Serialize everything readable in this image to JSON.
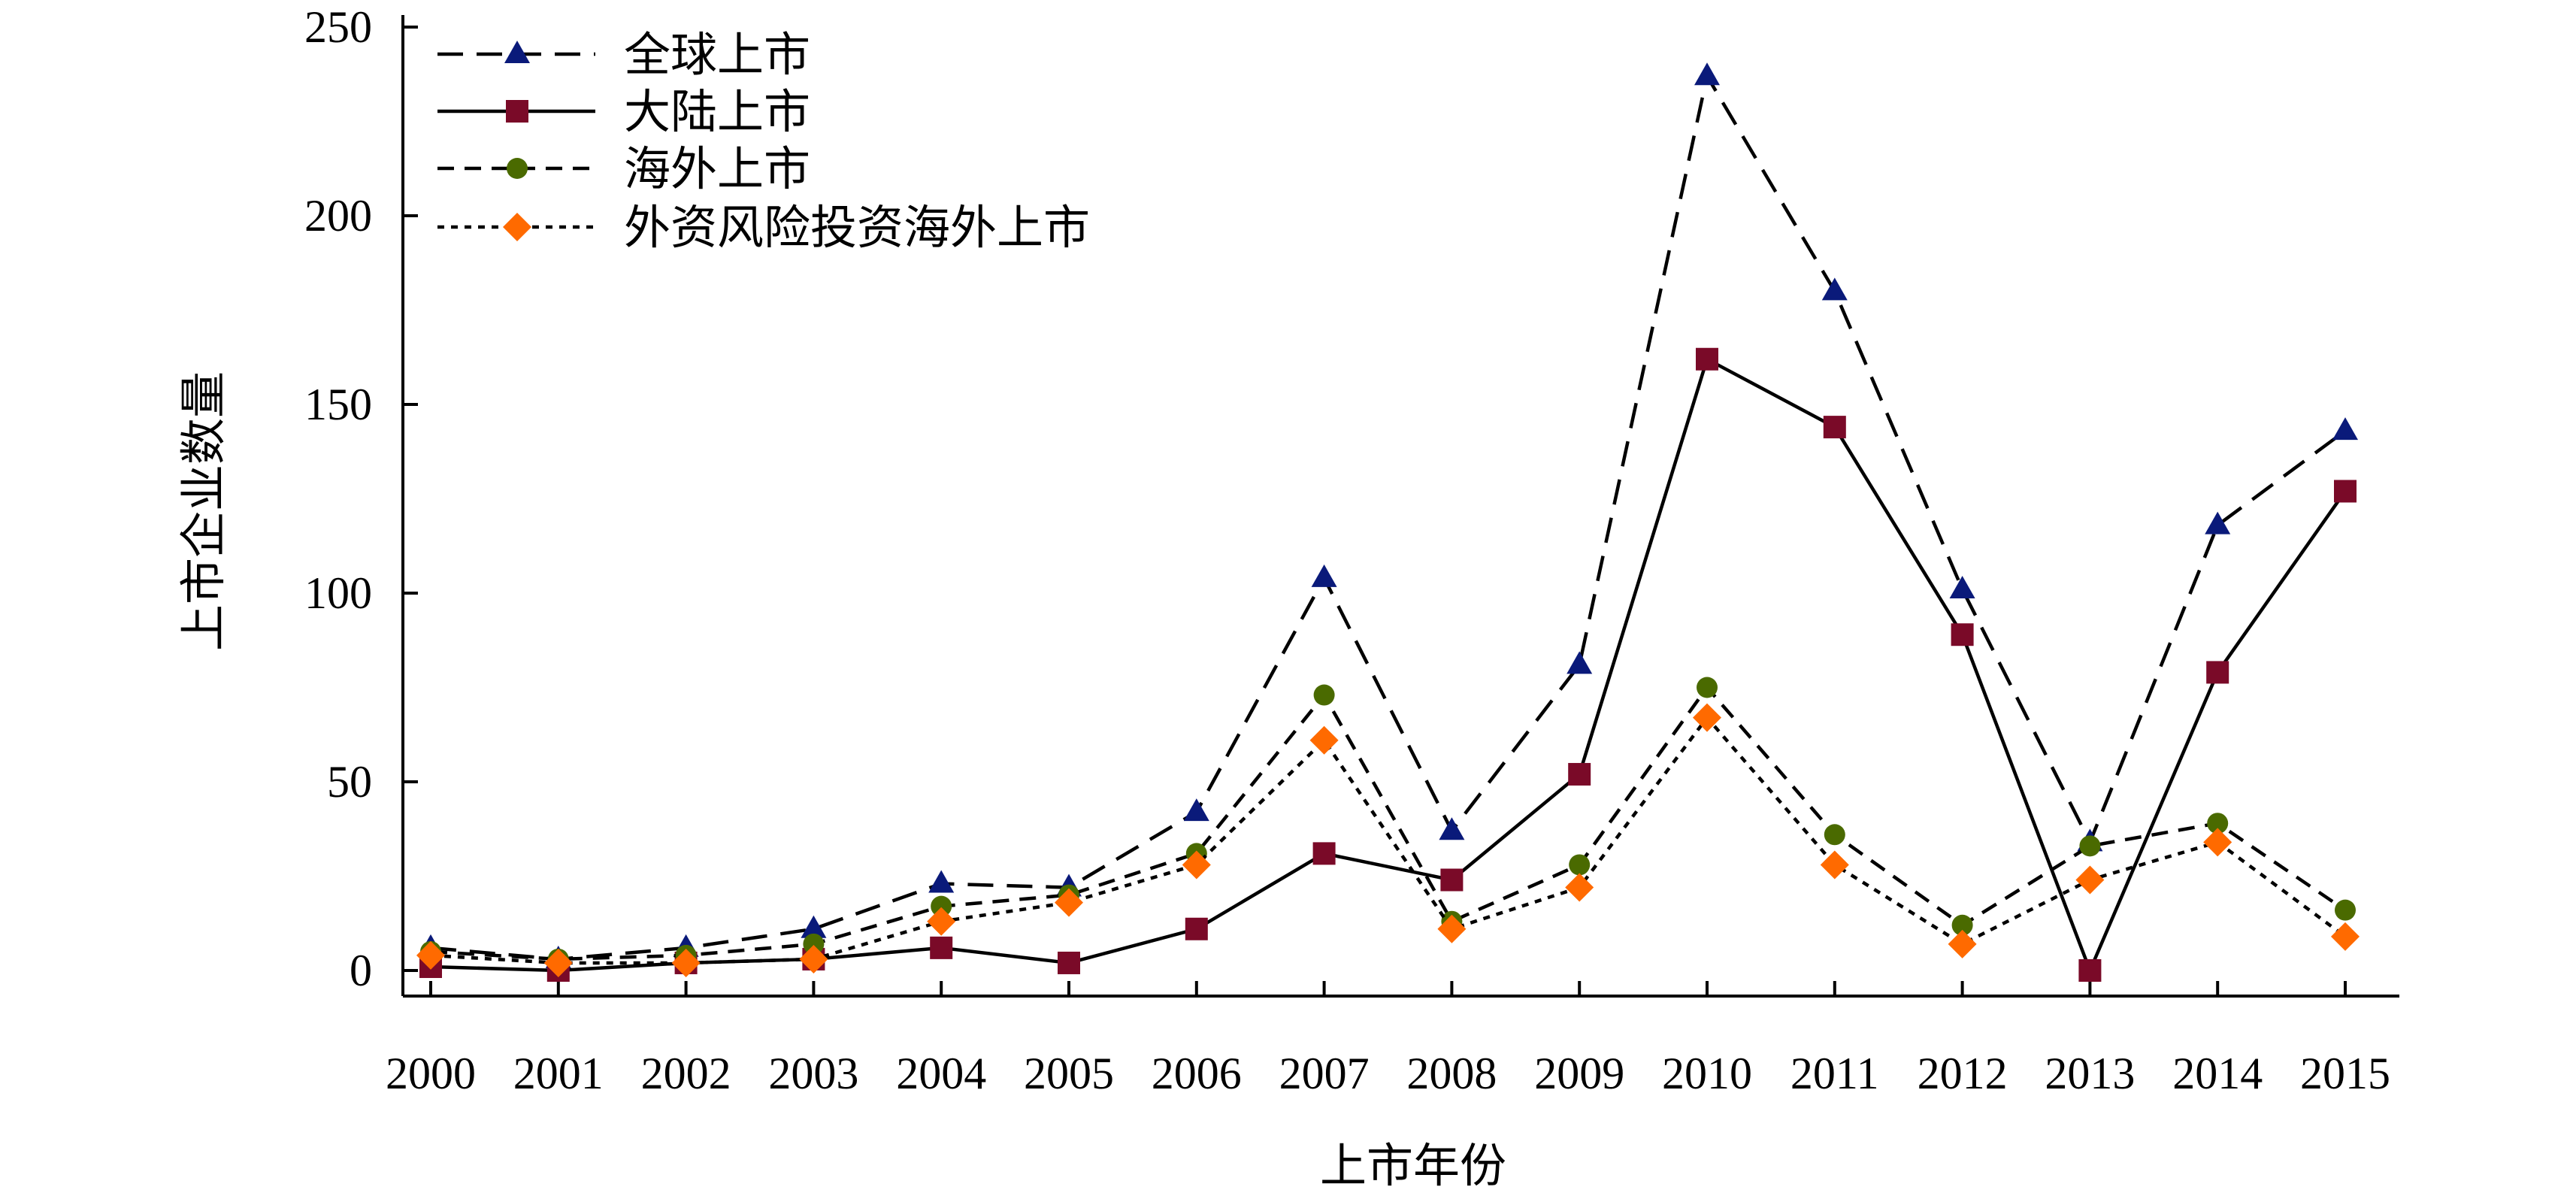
{
  "chart_data": {
    "type": "line",
    "xlabel": "上市年份",
    "ylabel": "上市企业数量",
    "categories": [
      "2000",
      "2001",
      "2002",
      "2003",
      "2004",
      "2005",
      "2006",
      "2007",
      "2008",
      "2009",
      "2010",
      "2011",
      "2012",
      "2013",
      "2014",
      "2015"
    ],
    "ylim": [
      0,
      250
    ],
    "yticks": [
      "0",
      "50",
      "100",
      "150",
      "200",
      "250"
    ],
    "grid": false,
    "legend_position": "top-left",
    "series": [
      {
        "name": "全球上市",
        "color": "#0a1a7a",
        "marker": "triangle",
        "dash": "long-dash",
        "values": [
          6,
          3,
          6,
          11,
          23,
          22,
          42,
          104,
          37,
          81,
          237,
          180,
          101,
          34,
          118,
          143
        ]
      },
      {
        "name": "大陆上市",
        "color": "#7a0a28",
        "marker": "square",
        "dash": "solid",
        "values": [
          1,
          0,
          2,
          3,
          6,
          2,
          11,
          31,
          24,
          52,
          162,
          144,
          89,
          0,
          79,
          127
        ]
      },
      {
        "name": "海外上市",
        "color": "#4a6a00",
        "marker": "circle",
        "dash": "dash",
        "values": [
          5,
          3,
          4,
          7,
          17,
          20,
          31,
          73,
          13,
          28,
          75,
          36,
          12,
          33,
          39,
          16
        ]
      },
      {
        "name": "外资风险投资海外上市",
        "color": "#ff6a00",
        "marker": "diamond",
        "dash": "dot",
        "values": [
          4,
          2,
          2,
          3,
          13,
          18,
          28,
          61,
          11,
          22,
          67,
          28,
          7,
          24,
          34,
          9
        ]
      }
    ]
  }
}
